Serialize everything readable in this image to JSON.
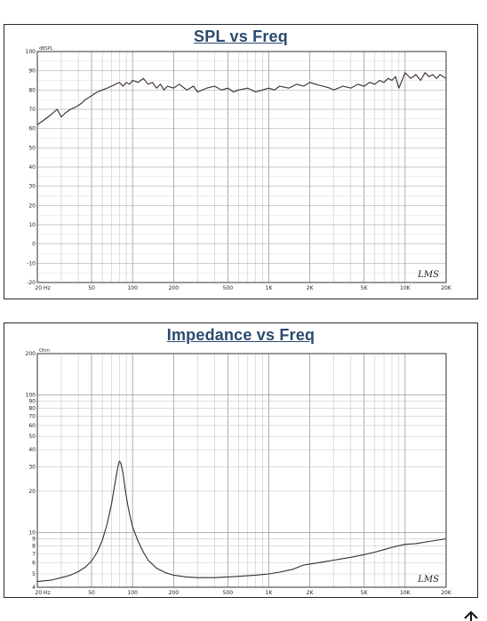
{
  "chart_data": [
    {
      "type": "line",
      "title": "SPL vs Freq",
      "ylabel": "dBSPL",
      "xscale": "log",
      "xlim": [
        20,
        20000
      ],
      "ylim": [
        -20,
        100
      ],
      "grid": true,
      "x_tick_labels": [
        "20 Hz",
        "50",
        "100",
        "200",
        "500",
        "1K",
        "2K",
        "5K",
        "10K",
        "20K"
      ],
      "y_tick_labels": [
        "100",
        "90",
        "80",
        "70",
        "60",
        "50",
        "40",
        "30",
        "20",
        "10",
        "0",
        "-10",
        "-20"
      ],
      "brand": "LMS",
      "series": [
        {
          "x": [
            20,
            22,
            25,
            28,
            30,
            32,
            35,
            38,
            42,
            45,
            50,
            55,
            60,
            65,
            70,
            75,
            80,
            85,
            90,
            95,
            100,
            110,
            120,
            130,
            140,
            150,
            160,
            170,
            180,
            200,
            220,
            250,
            280,
            300,
            350,
            400,
            450,
            500,
            550,
            600,
            700,
            800,
            900,
            1000,
            1100,
            1200,
            1400,
            1600,
            1800,
            2000,
            2200,
            2500,
            2800,
            3000,
            3500,
            4000,
            4500,
            5000,
            5500,
            6000,
            6500,
            7000,
            7500,
            8000,
            8500,
            9000,
            9500,
            10000,
            11000,
            12000,
            13000,
            14000,
            15000,
            16000,
            17000,
            18000,
            19000,
            20000
          ],
          "y": [
            62,
            64,
            67,
            70,
            66,
            68,
            70,
            71,
            73,
            75,
            77,
            79,
            80,
            81,
            82,
            83,
            84,
            82,
            84,
            83,
            85,
            84,
            86,
            83,
            84,
            81,
            83,
            80,
            82,
            81,
            83,
            80,
            82,
            79,
            81,
            82,
            80,
            81,
            79,
            80,
            81,
            79,
            80,
            81,
            80,
            82,
            81,
            83,
            82,
            84,
            83,
            82,
            81,
            80,
            82,
            81,
            83,
            82,
            84,
            83,
            85,
            84,
            86,
            85,
            87,
            81,
            85,
            89,
            86,
            88,
            85,
            89,
            87,
            88,
            86,
            88,
            87,
            86
          ]
        }
      ]
    },
    {
      "type": "line",
      "title": "Impedance vs Freq",
      "ylabel": "Ohm",
      "xscale": "log",
      "yscale": "log",
      "xlim": [
        20,
        20000
      ],
      "ylim": [
        4,
        200
      ],
      "grid": true,
      "x_tick_labels": [
        "20 Hz",
        "50",
        "100",
        "200",
        "500",
        "1K",
        "2K",
        "5K",
        "10K",
        "20K"
      ],
      "y_tick_labels": [
        "200",
        "100",
        "90",
        "80",
        "70",
        "60",
        "50",
        "40",
        "30",
        "20",
        "10",
        "9",
        "8",
        "7",
        "6",
        "5",
        "4"
      ],
      "brand": "LMS",
      "series": [
        {
          "x": [
            20,
            25,
            30,
            35,
            40,
            45,
            50,
            55,
            60,
            65,
            70,
            75,
            78,
            80,
            82,
            85,
            88,
            92,
            96,
            100,
            110,
            120,
            130,
            150,
            175,
            200,
            250,
            300,
            400,
            500,
            600,
            800,
            1000,
            1200,
            1500,
            1800,
            2000,
            2500,
            3000,
            4000,
            5000,
            6000,
            7000,
            8000,
            10000,
            12000,
            15000,
            20000
          ],
          "y": [
            4.4,
            4.5,
            4.7,
            4.9,
            5.2,
            5.6,
            6.2,
            7.2,
            8.8,
            11.5,
            16,
            24,
            30,
            33,
            32,
            27,
            21,
            16,
            13,
            11,
            8.6,
            7.2,
            6.3,
            5.5,
            5.1,
            4.9,
            4.75,
            4.7,
            4.7,
            4.75,
            4.8,
            4.9,
            5.0,
            5.15,
            5.4,
            5.8,
            5.9,
            6.1,
            6.3,
            6.6,
            6.9,
            7.2,
            7.5,
            7.8,
            8.2,
            8.3,
            8.6,
            9.0
          ]
        }
      ]
    }
  ]
}
